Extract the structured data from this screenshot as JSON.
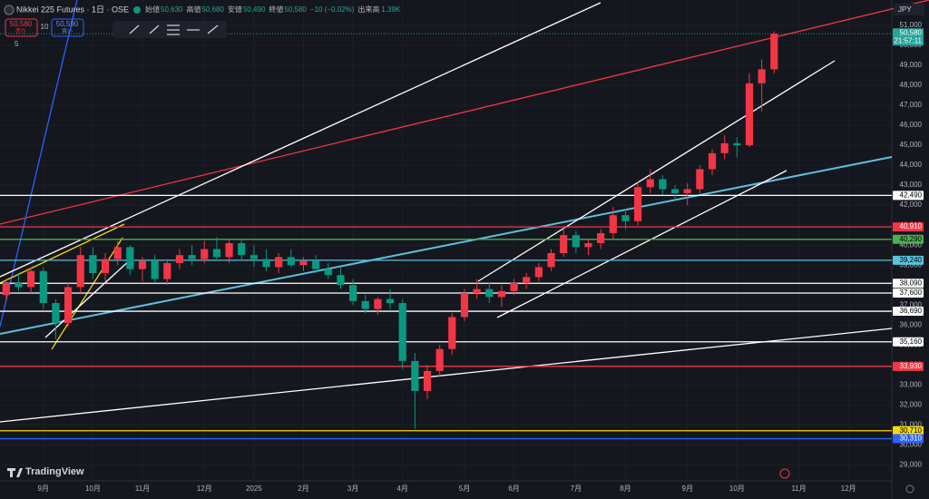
{
  "header": {
    "symbol": "Nikkei 225 Futures · 1日 · OSE",
    "fields": [
      {
        "label": "始値",
        "value": "50,630"
      },
      {
        "label": "高値",
        "value": "50,680"
      },
      {
        "label": "安値",
        "value": "50,490"
      },
      {
        "label": "終値",
        "value": "50,580"
      }
    ],
    "change": "−10 (−0.02%)",
    "volume_label": "出来高",
    "volume": "1.39K",
    "sell_price": "50,580",
    "sell_label": "売り",
    "spread": "10",
    "buy_price": "50,590",
    "buy_label": "買い",
    "interval_count": "5",
    "currency": "JPY",
    "logo": "TradingView"
  },
  "chart_data": {
    "type": "candlestick",
    "up_color": "#f23645",
    "down_color": "#089981",
    "categories": [
      null,
      null,
      null,
      "9月",
      null,
      null,
      null,
      "10月",
      null,
      null,
      null,
      "11月",
      null,
      null,
      null,
      null,
      "12月",
      null,
      null,
      null,
      "2025",
      null,
      null,
      null,
      "2月",
      null,
      null,
      null,
      "3月",
      null,
      null,
      null,
      "4月",
      null,
      null,
      null,
      null,
      "5月",
      null,
      null,
      null,
      "6月",
      null,
      null,
      null,
      null,
      "7月",
      null,
      null,
      null,
      "8月",
      null,
      null,
      null,
      null,
      "9月",
      null,
      null,
      null,
      "10月",
      null,
      null,
      null,
      null,
      "11月",
      null,
      null,
      null,
      "12月",
      null,
      null,
      null
    ],
    "open": [
      37500,
      38100,
      37900,
      38700,
      37100,
      36100,
      37900,
      39500,
      38600,
      39300,
      39900,
      38800,
      39200,
      38300,
      39100,
      39500,
      39300,
      39800,
      39400,
      40100,
      39500,
      39300,
      38900,
      39400,
      39000,
      39200,
      38800,
      38500,
      38000,
      37200,
      36800,
      37300,
      37100,
      34200,
      32700,
      33700,
      34800,
      36400,
      37600,
      37800,
      37400,
      37700,
      38100,
      38400,
      38900,
      39600,
      40500,
      39900,
      40100,
      40600,
      41500,
      41200,
      42900,
      43300,
      42800,
      42600,
      42800,
      43800,
      44600,
      45100,
      45000,
      48100,
      48800,
      null,
      null,
      null,
      null,
      null,
      null,
      null,
      null,
      null
    ],
    "high": [
      38300,
      38600,
      38900,
      38900,
      37300,
      38100,
      39900,
      39900,
      39600,
      40200,
      40000,
      39400,
      39500,
      39300,
      39800,
      40000,
      40200,
      40400,
      40300,
      40300,
      40000,
      39800,
      39600,
      39800,
      39400,
      39500,
      39100,
      38900,
      38300,
      37500,
      37400,
      37800,
      37300,
      34600,
      34000,
      35000,
      36600,
      37800,
      38300,
      38100,
      38000,
      38300,
      38600,
      39100,
      39800,
      40900,
      40700,
      40300,
      40800,
      41900,
      41800,
      43200,
      43800,
      43500,
      43000,
      43100,
      44000,
      44800,
      45500,
      45400,
      48600,
      49300,
      50700,
      null,
      null,
      null,
      null,
      null,
      null,
      null,
      null,
      null
    ],
    "low": [
      37200,
      37700,
      37600,
      36800,
      35300,
      35900,
      37600,
      38300,
      38200,
      39000,
      38500,
      38200,
      38100,
      38000,
      38800,
      39000,
      39100,
      39200,
      39100,
      39200,
      38900,
      38700,
      38600,
      38900,
      38700,
      38600,
      38300,
      37800,
      37000,
      36600,
      36500,
      36800,
      33800,
      30800,
      32300,
      33400,
      34500,
      36200,
      37300,
      37100,
      36900,
      37500,
      37800,
      38200,
      38700,
      39400,
      39600,
      39500,
      39800,
      40300,
      40800,
      41000,
      42600,
      42500,
      42200,
      42000,
      42600,
      43500,
      44300,
      44400,
      44900,
      46700,
      48600,
      null,
      null,
      null,
      null,
      null,
      null,
      null,
      null,
      null
    ],
    "close": [
      38100,
      37900,
      38700,
      37100,
      36100,
      37900,
      39500,
      38600,
      39300,
      39900,
      38800,
      39200,
      38300,
      39100,
      39500,
      39300,
      39800,
      39400,
      40100,
      39500,
      39300,
      38900,
      39400,
      39000,
      39200,
      38800,
      38500,
      38000,
      37200,
      36800,
      37300,
      37100,
      34200,
      32700,
      33700,
      34800,
      36400,
      37600,
      37800,
      37400,
      37700,
      38100,
      38400,
      38900,
      39600,
      40500,
      39900,
      40100,
      40600,
      41500,
      41200,
      42900,
      43300,
      42800,
      42600,
      42800,
      43800,
      44600,
      45100,
      45000,
      48100,
      48800,
      50580,
      null,
      null,
      null,
      null,
      null,
      null,
      null,
      null,
      null
    ],
    "ylim": [
      28200,
      52270
    ],
    "yticks": [
      {
        "value": 29000,
        "label": "29,000"
      },
      {
        "value": 30000,
        "label": "30,000"
      },
      {
        "value": 31000,
        "label": "31,000"
      },
      {
        "value": 32000,
        "label": "32,000"
      },
      {
        "value": 33000,
        "label": "33,000"
      },
      {
        "value": 34000,
        "label": "34,000"
      },
      {
        "value": 35000,
        "label": "35,000"
      },
      {
        "value": 36000,
        "label": "36,000"
      },
      {
        "value": 37000,
        "label": "37,000"
      },
      {
        "value": 38000,
        "label": "38,000"
      },
      {
        "value": 39000,
        "label": "39,000"
      },
      {
        "value": 40000,
        "label": "40,000"
      },
      {
        "value": 41000,
        "label": "41,000"
      },
      {
        "value": 42000,
        "label": "42,000"
      },
      {
        "value": 43000,
        "label": "43,000"
      },
      {
        "value": 44000,
        "label": "44,000"
      },
      {
        "value": 45000,
        "label": "45,000"
      },
      {
        "value": 46000,
        "label": "46,000"
      },
      {
        "value": 47000,
        "label": "47,000"
      },
      {
        "value": 48000,
        "label": "48,000"
      },
      {
        "value": 49000,
        "label": "49,000"
      },
      {
        "value": 50000,
        "label": "50,000"
      },
      {
        "value": 51000,
        "label": "51,000"
      }
    ],
    "horizontal_lines": [
      {
        "value": 42490,
        "label": "42,490",
        "color": "#ffffff"
      },
      {
        "value": 40910,
        "label": "40,910",
        "color": "#f23645"
      },
      {
        "value": 40290,
        "label": "40,290",
        "color": "#4caf50"
      },
      {
        "value": 39240,
        "label": "39,240",
        "color": "#5bc0de"
      },
      {
        "value": 38090,
        "label": "38,090",
        "color": "#ffffff"
      },
      {
        "value": 37600,
        "label": "37,600",
        "color": "#ffffff"
      },
      {
        "value": 36690,
        "label": "36,690",
        "color": "#ffffff"
      },
      {
        "value": 35160,
        "label": "35,160",
        "color": "#ffffff"
      },
      {
        "value": 33930,
        "label": "33,930",
        "color": "#f23645"
      },
      {
        "value": 30710,
        "label": "30,710",
        "color": "#f5d90a"
      },
      {
        "value": 30310,
        "label": "30,310",
        "color": "#2962ff"
      }
    ],
    "last_price": {
      "value": 50580,
      "label": "50,580",
      "countdown": "21:57:11",
      "color": "#26a69a"
    }
  }
}
